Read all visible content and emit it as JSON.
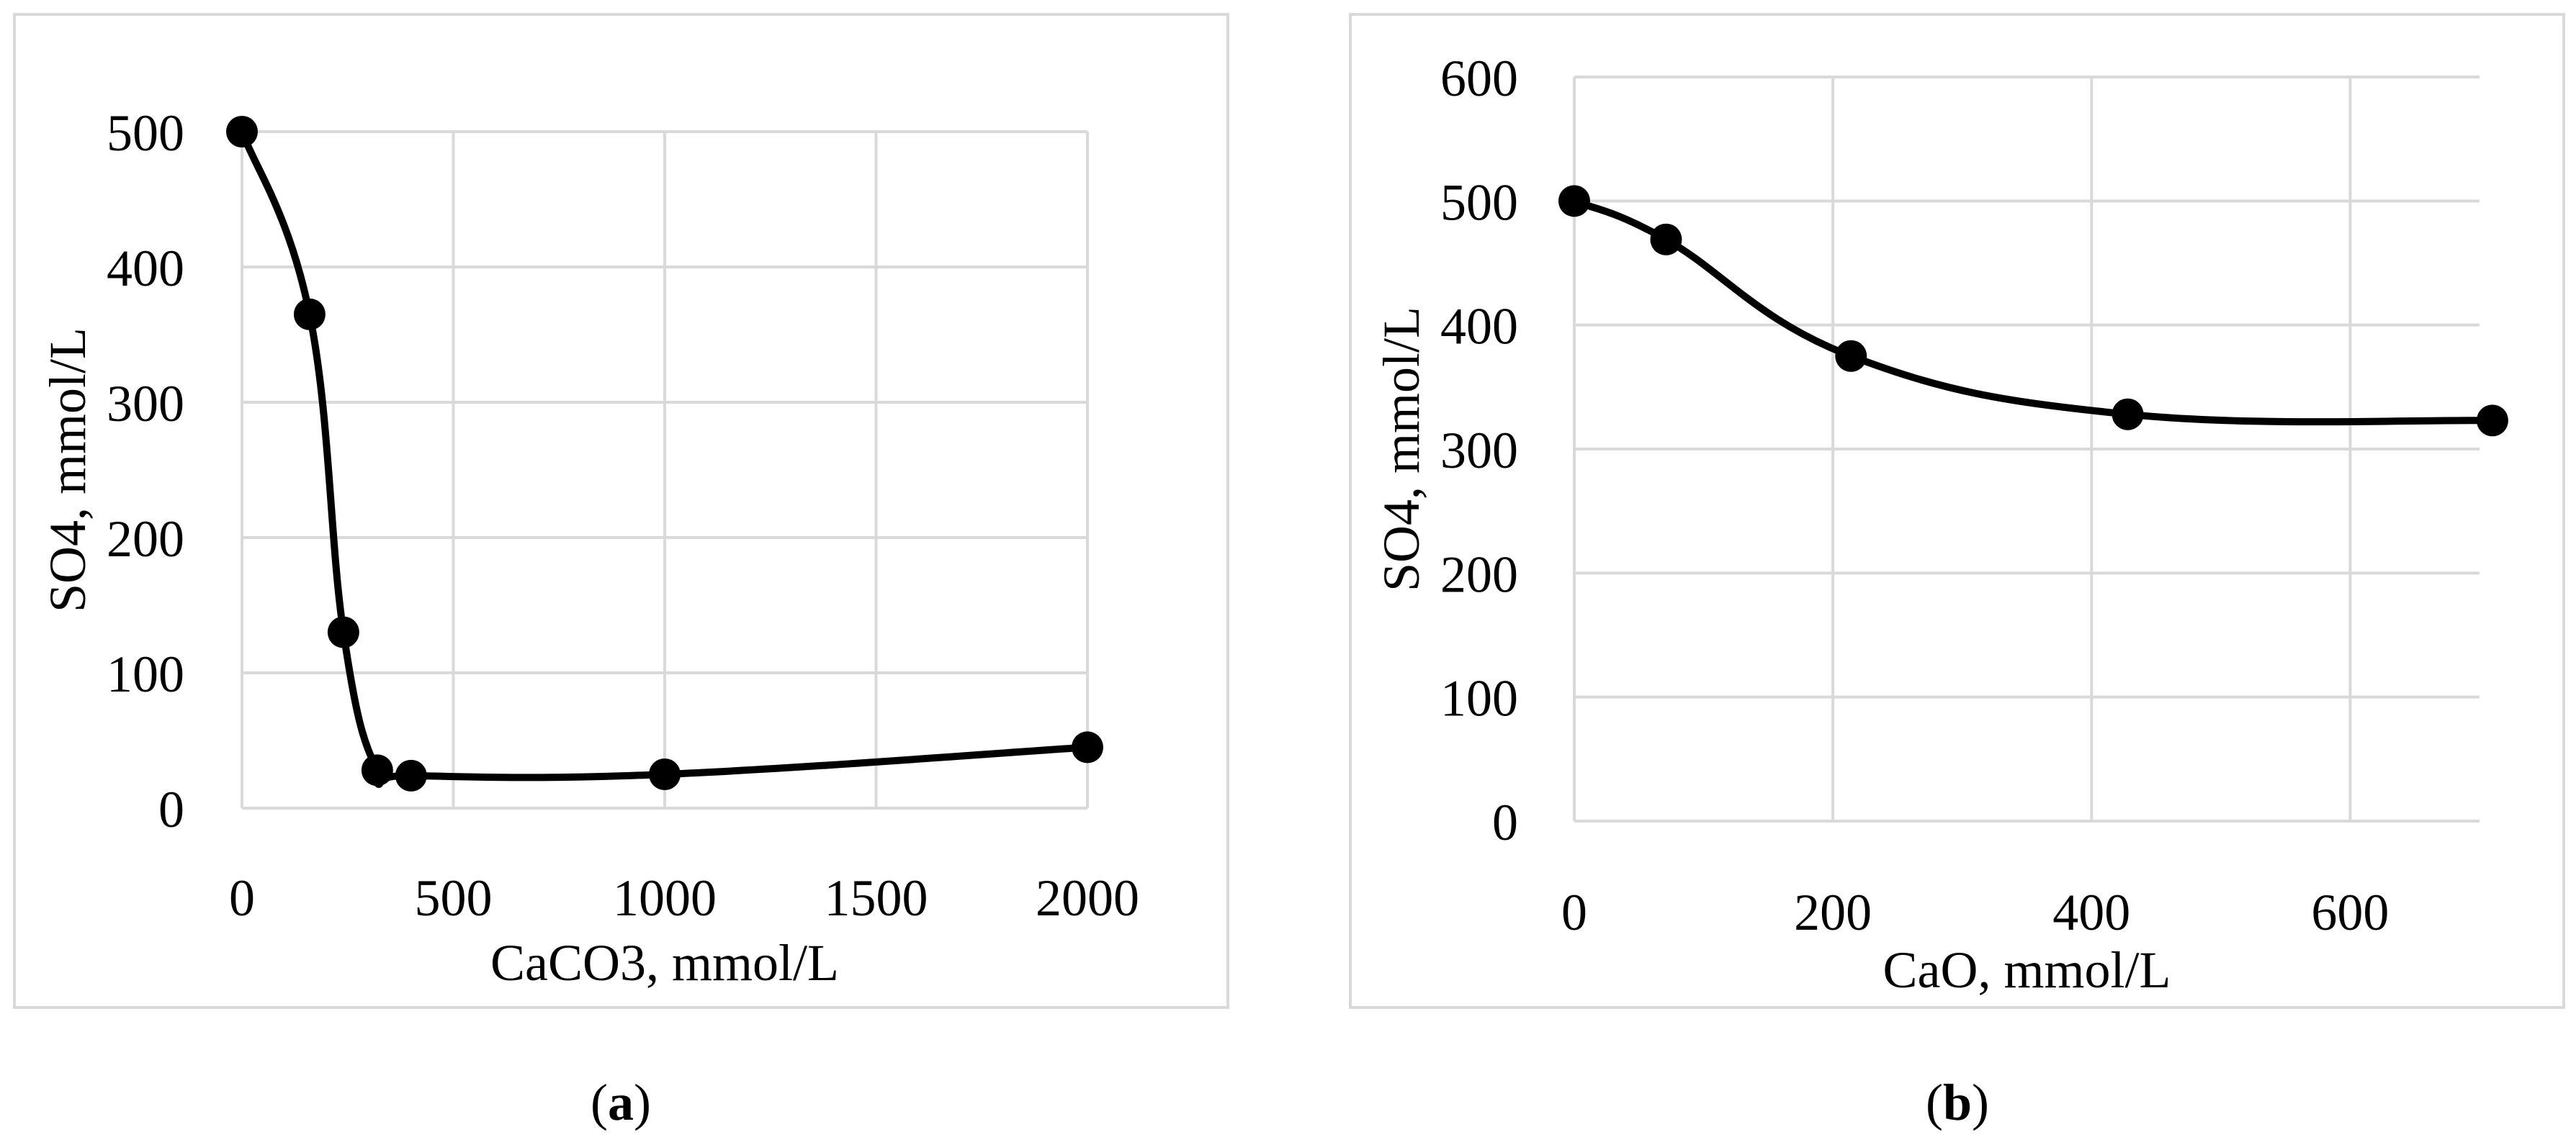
{
  "chart_data": [
    {
      "type": "line",
      "panel_label": "a",
      "xlabel": "CaCO3, mmol/L",
      "ylabel": "SO4, mmol/L",
      "xlim": [
        0,
        2000
      ],
      "ylim": [
        0,
        500
      ],
      "xticks": [
        0,
        500,
        1000,
        1500,
        2000
      ],
      "yticks": [
        0,
        100,
        200,
        300,
        400,
        500
      ],
      "grid": true,
      "smooth": true,
      "x": [
        0,
        160,
        240,
        320,
        400,
        1000,
        2000
      ],
      "y": [
        500,
        365,
        130,
        28,
        24,
        25,
        45
      ]
    },
    {
      "type": "line",
      "panel_label": "b",
      "xlabel": "CaO, mmol/L",
      "ylabel": "SO4, mmol/L",
      "xlim": [
        0,
        700
      ],
      "ylim": [
        0,
        600
      ],
      "xticks": [
        0,
        200,
        400,
        600
      ],
      "yticks": [
        0,
        100,
        200,
        300,
        400,
        500,
        600
      ],
      "grid": true,
      "smooth": true,
      "x": [
        0,
        71,
        214,
        428,
        710
      ],
      "y": [
        500,
        469,
        375,
        328,
        323
      ]
    }
  ],
  "captions": [
    {
      "open": "(",
      "letter": "a",
      "close": ")"
    },
    {
      "open": "(",
      "letter": "b",
      "close": ")"
    }
  ]
}
